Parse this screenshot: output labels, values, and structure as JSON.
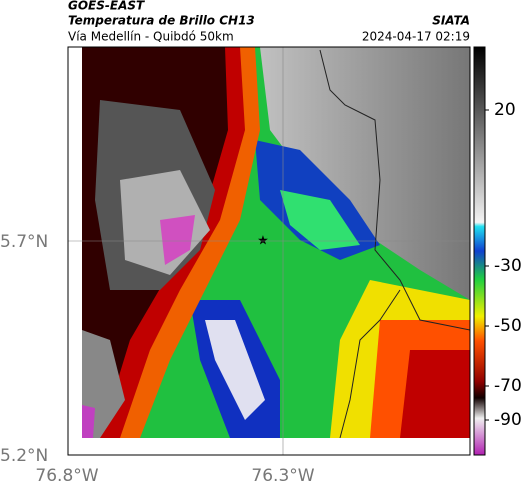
{
  "header": {
    "satellite": "GOES-EAST",
    "product": "Temperatura de Brillo CH13",
    "route": "Vía Medellín - Quibdó 50km",
    "source": "SIATA",
    "timestamp": "2024-04-17 02:19"
  },
  "map": {
    "lat_labels": [
      "5.7°N",
      "5.2°N"
    ],
    "lon_labels": [
      "76.8°W",
      "76.3°W"
    ]
  },
  "colorbar": {
    "ticks": [
      20,
      -30,
      -50,
      -70,
      -90
    ]
  }
}
